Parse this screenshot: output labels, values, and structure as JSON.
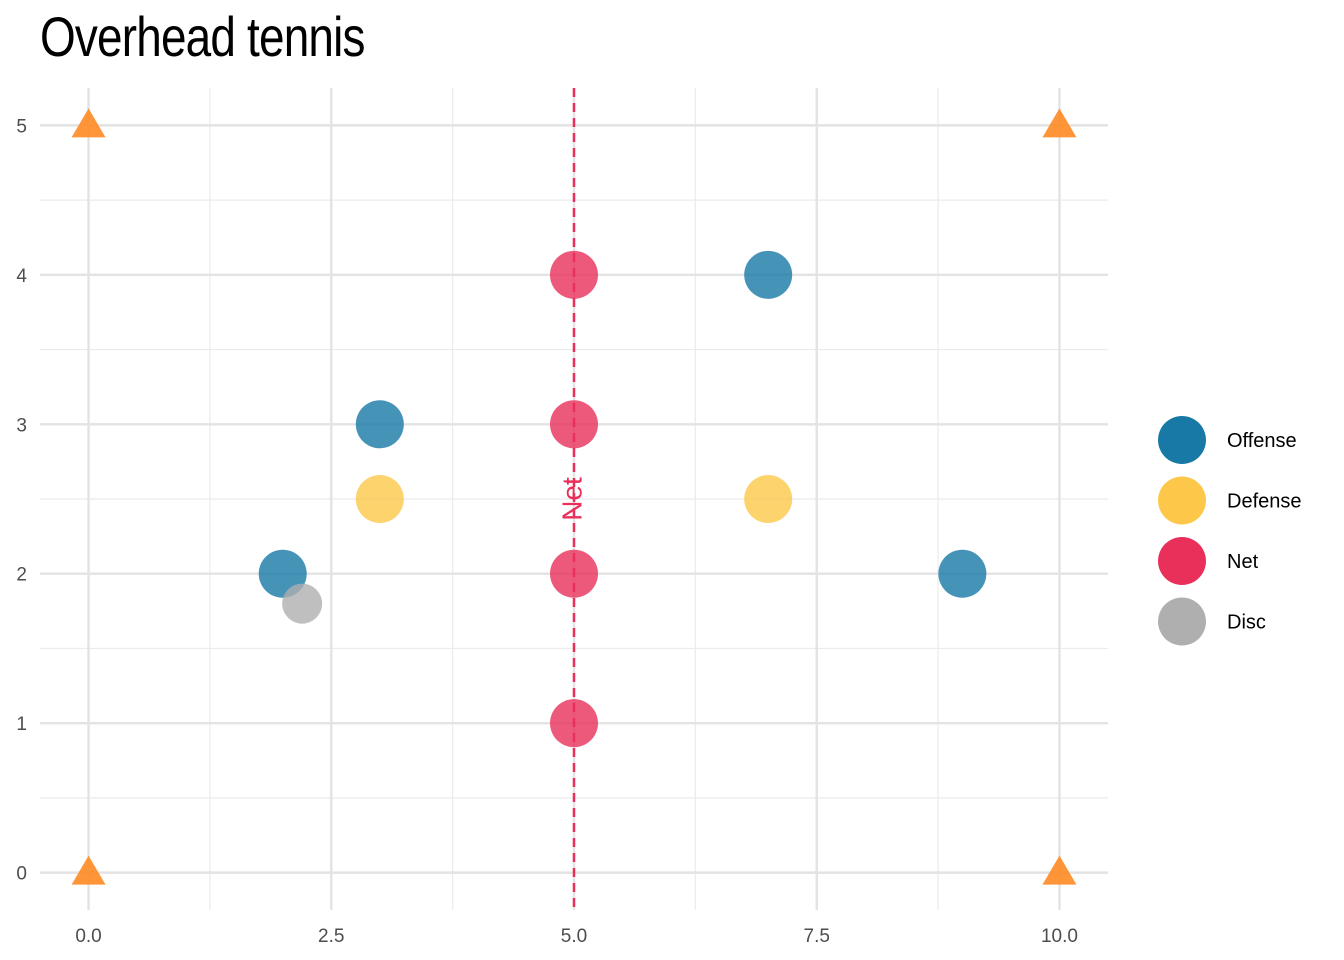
{
  "title": "Overhead tennis",
  "chart_data": {
    "type": "scatter",
    "title": "Overhead tennis",
    "xlabel": "",
    "ylabel": "",
    "xlim": [
      -0.5,
      10.5
    ],
    "ylim": [
      -0.25,
      5.25
    ],
    "x_ticks": [
      "0.0",
      "2.5",
      "5.0",
      "7.5",
      "10.0"
    ],
    "x_tick_values": [
      0,
      2.5,
      5,
      7.5,
      10
    ],
    "y_ticks": [
      "0",
      "1",
      "2",
      "3",
      "4",
      "5"
    ],
    "y_tick_values": [
      0,
      1,
      2,
      3,
      4,
      5
    ],
    "grid": true,
    "legend_position": "right",
    "series": [
      {
        "name": "Offense",
        "color": "#1878A6",
        "points": [
          [
            2,
            2
          ],
          [
            3,
            3
          ],
          [
            7,
            4
          ],
          [
            9,
            2
          ]
        ]
      },
      {
        "name": "Defense",
        "color": "#FDC84A",
        "points": [
          [
            3,
            2.5
          ],
          [
            7,
            2.5
          ]
        ]
      },
      {
        "name": "Net",
        "color": "#E8305A",
        "points": [
          [
            5,
            1
          ],
          [
            5,
            2
          ],
          [
            5,
            3
          ],
          [
            5,
            4
          ]
        ]
      },
      {
        "name": "Disc",
        "color": "#AFAFAF",
        "points": [
          [
            2.2,
            1.8
          ]
        ],
        "small": true
      }
    ],
    "cones": {
      "color": "#FF8A24",
      "points": [
        [
          0,
          0
        ],
        [
          0,
          5
        ],
        [
          10,
          0
        ],
        [
          10,
          5
        ]
      ]
    },
    "net_line": {
      "x": 5,
      "label": "Net",
      "label_y": 2.5,
      "color": "#E8305A"
    }
  }
}
